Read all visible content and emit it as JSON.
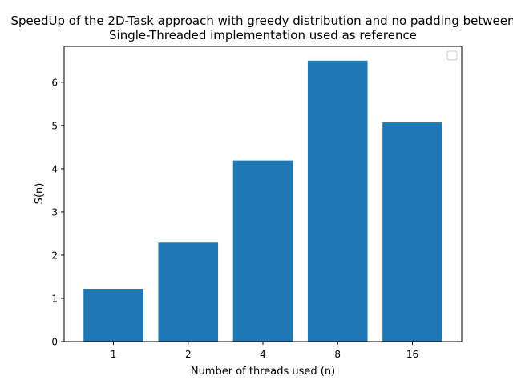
{
  "chart_data": {
    "type": "bar",
    "title": "SpeedUp of the 2D-Task approach with greedy distribution and no padding between",
    "subtitle": "Single-Threaded implementation used as reference",
    "xlabel": "Number of threads used (n)",
    "ylabel": "S(n)",
    "categories": [
      "1",
      "2",
      "4",
      "8",
      "16"
    ],
    "values": [
      1.22,
      2.29,
      4.19,
      6.5,
      5.07
    ],
    "ylim": [
      0,
      6.83
    ],
    "yticks": [
      "0",
      "1",
      "2",
      "3",
      "4",
      "5",
      "6"
    ],
    "grid": false,
    "legend": "top-right",
    "bar_color": "#1f77b4"
  }
}
